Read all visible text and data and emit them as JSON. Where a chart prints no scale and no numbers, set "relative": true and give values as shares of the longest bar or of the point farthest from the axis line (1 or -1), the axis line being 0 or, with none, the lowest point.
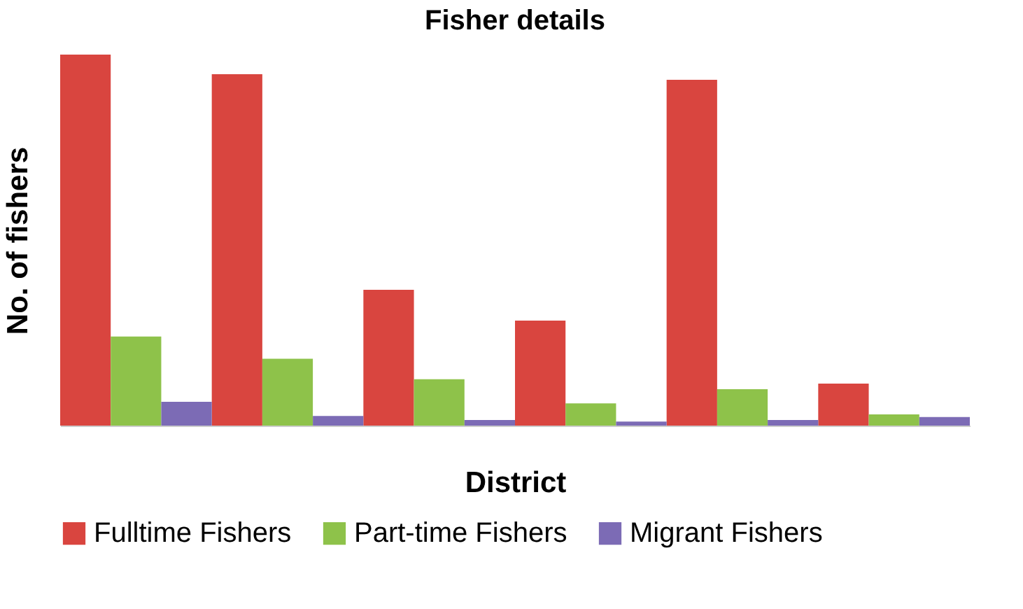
{
  "chart_data": {
    "type": "bar",
    "title": "Fisher details",
    "xlabel": "District",
    "ylabel": "No. of fishers",
    "relative": true,
    "legend": "bottom",
    "grid": false,
    "categories": [
      null,
      null,
      null,
      null,
      null,
      null
    ],
    "series": [
      {
        "name": "Fulltime Fishers",
        "color": "#d9453f",
        "values": [
          1,
          0.947,
          0.366,
          0.283,
          0.932,
          0.113
        ]
      },
      {
        "name": "Part-time Fishers",
        "color": "#8ec24a",
        "values": [
          0.24,
          0.18,
          0.125,
          0.06,
          0.098,
          0.03
        ]
      },
      {
        "name": "Migrant Fishers",
        "color": "#7c6bb5",
        "values": [
          0.064,
          0.026,
          0.015,
          0.011,
          0.015,
          0.023
        ]
      }
    ]
  }
}
